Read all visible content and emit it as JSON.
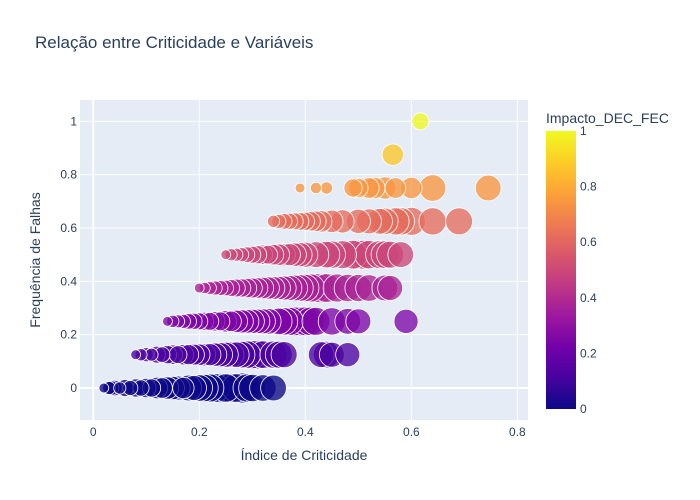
{
  "chart_data": {
    "type": "scatter",
    "title": "Relação entre Criticidade e Variáveis",
    "xlabel": "Índice de Criticidade",
    "ylabel": "Frequência de Falhas",
    "xlim": [
      -0.025,
      0.82
    ],
    "ylim": [
      -0.12,
      1.08
    ],
    "x_ticks": [
      0,
      0.2,
      0.4,
      0.6,
      0.8
    ],
    "y_ticks": [
      0,
      0.2,
      0.4,
      0.6,
      0.8,
      1
    ],
    "x_tick_labels": [
      "0",
      "0.2",
      "0.4",
      "0.6",
      "0.8"
    ],
    "y_tick_labels": [
      "0",
      "0.2",
      "0.4",
      "0.6",
      "0.8",
      "1"
    ],
    "grid": true,
    "color_by": "Impacto_DEC_FEC",
    "colorbar": {
      "title": "Impacto_DEC_FEC",
      "range": [
        0,
        1
      ],
      "ticks": [
        0,
        0.2,
        0.4,
        0.6,
        0.8,
        1
      ],
      "tick_labels": [
        "0",
        "0.2",
        "0.4",
        "0.6",
        "0.8",
        "1"
      ],
      "colorscale": [
        "#0d0887",
        "#46039f",
        "#7201a8",
        "#9c179e",
        "#bd3786",
        "#d8576b",
        "#ed7953",
        "#fb9f3a",
        "#fdca26",
        "#f0f921"
      ]
    },
    "size_range_note": "marker area encodes a numeric variable",
    "rows": [
      {
        "y": 0,
        "x": [
          0.02,
          0.03,
          0.035,
          0.04,
          0.05,
          0.06,
          0.07,
          0.08,
          0.09,
          0.1,
          0.11,
          0.12,
          0.13,
          0.14,
          0.15,
          0.16,
          0.17,
          0.18,
          0.19,
          0.2,
          0.21,
          0.22,
          0.23,
          0.24,
          0.25,
          0.26,
          0.27,
          0.28,
          0.29,
          0.3,
          0.32,
          0.34
        ],
        "size": [
          0.05,
          0.12,
          0.15,
          0.2,
          0.1,
          0.25,
          0.18,
          0.3,
          0.22,
          0.35,
          0.3,
          0.45,
          0.4,
          0.5,
          0.55,
          0.6,
          0.45,
          0.7,
          0.65,
          0.75,
          0.8,
          0.85,
          0.9,
          0.95,
          0.88,
          0.92,
          0.9,
          1.0,
          0.85,
          0.8,
          0.75,
          0.7
        ]
      },
      {
        "y": 0.125,
        "x": [
          0.08,
          0.09,
          0.1,
          0.11,
          0.12,
          0.13,
          0.14,
          0.15,
          0.16,
          0.17,
          0.18,
          0.19,
          0.2,
          0.21,
          0.22,
          0.23,
          0.24,
          0.25,
          0.26,
          0.27,
          0.28,
          0.29,
          0.3,
          0.31,
          0.32,
          0.34,
          0.35,
          0.36,
          0.43,
          0.44,
          0.45,
          0.48
        ],
        "size": [
          0.05,
          0.1,
          0.15,
          0.12,
          0.25,
          0.2,
          0.3,
          0.35,
          0.28,
          0.4,
          0.38,
          0.42,
          0.45,
          0.5,
          0.48,
          0.55,
          0.6,
          0.65,
          0.7,
          0.68,
          0.75,
          0.8,
          0.85,
          0.9,
          0.82,
          0.8,
          0.78,
          0.72,
          0.7,
          0.75,
          0.65,
          0.6
        ]
      },
      {
        "y": 0.25,
        "x": [
          0.14,
          0.15,
          0.16,
          0.17,
          0.18,
          0.19,
          0.2,
          0.21,
          0.22,
          0.23,
          0.24,
          0.25,
          0.26,
          0.27,
          0.28,
          0.29,
          0.3,
          0.31,
          0.32,
          0.33,
          0.35,
          0.36,
          0.37,
          0.38,
          0.39,
          0.4,
          0.41,
          0.42,
          0.45,
          0.48,
          0.5,
          0.59
        ],
        "size": [
          0.05,
          0.1,
          0.12,
          0.15,
          0.2,
          0.22,
          0.25,
          0.3,
          0.28,
          0.35,
          0.32,
          0.45,
          0.4,
          0.5,
          0.55,
          0.58,
          0.6,
          0.62,
          0.65,
          0.7,
          0.75,
          0.8,
          0.85,
          0.9,
          0.95,
          0.9,
          0.88,
          0.85,
          0.8,
          0.7,
          0.65,
          0.6
        ]
      },
      {
        "y": 0.375,
        "x": [
          0.2,
          0.21,
          0.22,
          0.23,
          0.24,
          0.25,
          0.26,
          0.27,
          0.28,
          0.29,
          0.3,
          0.31,
          0.32,
          0.33,
          0.34,
          0.35,
          0.36,
          0.37,
          0.38,
          0.39,
          0.4,
          0.41,
          0.42,
          0.43,
          0.44,
          0.46,
          0.48,
          0.5,
          0.52,
          0.55,
          0.56
        ],
        "size": [
          0.05,
          0.08,
          0.12,
          0.15,
          0.18,
          0.2,
          0.25,
          0.28,
          0.3,
          0.35,
          0.38,
          0.4,
          0.45,
          0.5,
          0.52,
          0.55,
          0.6,
          0.65,
          0.7,
          0.75,
          0.8,
          0.85,
          0.9,
          0.95,
          0.9,
          0.85,
          0.8,
          0.78,
          0.75,
          0.7,
          0.65
        ]
      },
      {
        "y": 0.5,
        "x": [
          0.25,
          0.26,
          0.27,
          0.28,
          0.29,
          0.3,
          0.31,
          0.32,
          0.33,
          0.34,
          0.35,
          0.36,
          0.37,
          0.38,
          0.39,
          0.4,
          0.42,
          0.44,
          0.45,
          0.47,
          0.49,
          0.5,
          0.51,
          0.52,
          0.54,
          0.55,
          0.56,
          0.58
        ],
        "size": [
          0.05,
          0.1,
          0.12,
          0.15,
          0.2,
          0.25,
          0.3,
          0.35,
          0.32,
          0.4,
          0.45,
          0.5,
          0.48,
          0.55,
          0.6,
          0.65,
          0.7,
          0.75,
          0.8,
          0.85,
          0.9,
          0.95,
          0.92,
          0.88,
          0.85,
          0.82,
          0.78,
          0.7
        ]
      },
      {
        "y": 0.625,
        "x": [
          0.34,
          0.35,
          0.36,
          0.37,
          0.38,
          0.39,
          0.4,
          0.41,
          0.42,
          0.43,
          0.45,
          0.47,
          0.5,
          0.52,
          0.54,
          0.55,
          0.57,
          0.58,
          0.6,
          0.64,
          0.69
        ],
        "size": [
          0.1,
          0.15,
          0.2,
          0.22,
          0.25,
          0.28,
          0.3,
          0.35,
          0.4,
          0.45,
          0.5,
          0.55,
          0.6,
          0.65,
          0.7,
          0.75,
          0.8,
          0.82,
          0.85,
          0.8,
          0.78
        ]
      },
      {
        "y": 0.75,
        "x": [
          0.39,
          0.42,
          0.44,
          0.49,
          0.5,
          0.52,
          0.53,
          0.55,
          0.57,
          0.6,
          0.64,
          0.745
        ],
        "size": [
          0.05,
          0.08,
          0.1,
          0.3,
          0.35,
          0.4,
          0.45,
          0.5,
          0.4,
          0.45,
          0.75,
          0.7
        ]
      },
      {
        "y": 0.875,
        "x": [
          0.565
        ],
        "size": [
          0.45
        ]
      },
      {
        "y": 1,
        "x": [
          0.617
        ],
        "size": [
          0.25
        ]
      }
    ]
  }
}
